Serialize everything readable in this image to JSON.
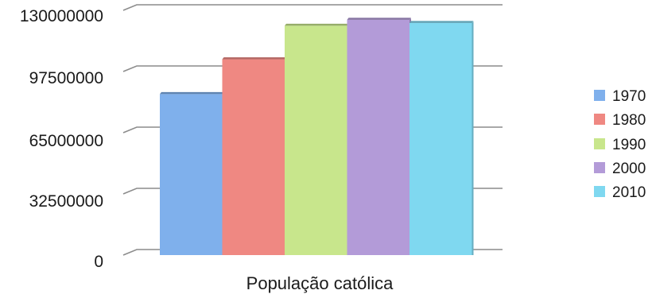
{
  "chart_data": {
    "type": "bar",
    "style": "3d",
    "categories": [
      "População católica"
    ],
    "series": [
      {
        "name": "1970",
        "values": [
          85500000
        ],
        "color": "#7fb0ec"
      },
      {
        "name": "1980",
        "values": [
          104000000
        ],
        "color": "#ef8882"
      },
      {
        "name": "1990",
        "values": [
          121800000
        ],
        "color": "#c8e68c"
      },
      {
        "name": "2000",
        "values": [
          125000000
        ],
        "color": "#b39bd8"
      },
      {
        "name": "2010",
        "values": [
          123300000
        ],
        "color": "#7fd8f0"
      }
    ],
    "y_ticks": [
      "0",
      "32500000",
      "65000000",
      "97500000",
      "130000000"
    ],
    "ylim": [
      0,
      130000000
    ],
    "title": "",
    "xlabel": "",
    "ylabel": "",
    "grid": true,
    "legend_position": "right"
  }
}
